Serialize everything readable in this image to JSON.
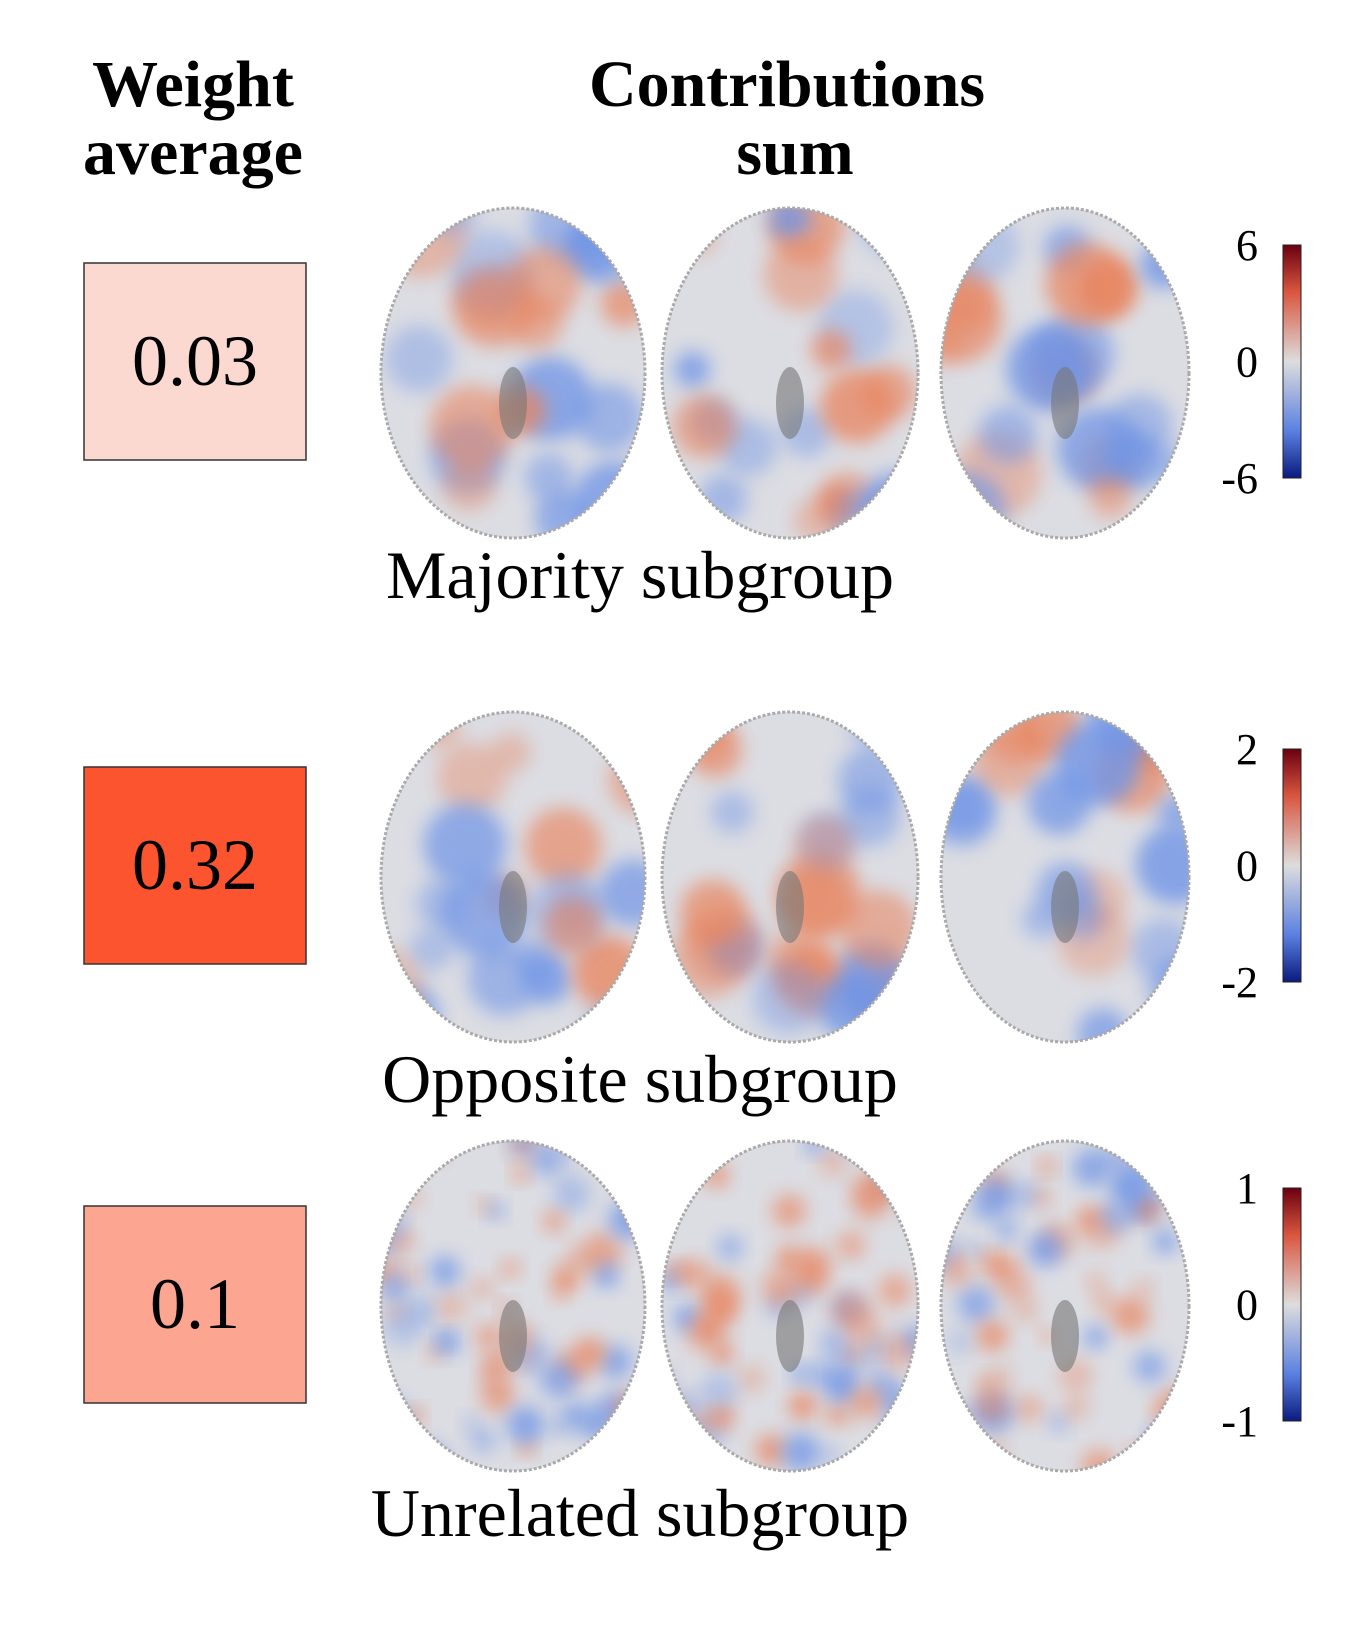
{
  "header": {
    "weight": [
      "Weight",
      "average"
    ],
    "contributions": [
      "Contributions",
      "sum"
    ]
  },
  "rows": [
    {
      "weight": 0.03,
      "box_color": "#fcd9d0",
      "label": "Majority subgroup",
      "colorbar_ticks": [
        6,
        0,
        -6
      ]
    },
    {
      "weight": 0.32,
      "box_color": "#fd5430",
      "label": "Opposite subgroup",
      "colorbar_ticks": [
        2,
        0,
        -2
      ]
    },
    {
      "weight": 0.1,
      "box_color": "#fca590",
      "label": "Unrelated subgroup",
      "colorbar_ticks": [
        1,
        0,
        -1
      ]
    }
  ]
}
